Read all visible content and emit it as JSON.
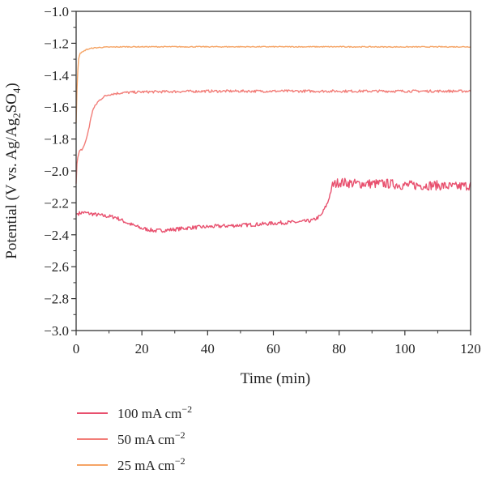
{
  "chart_data": {
    "type": "line",
    "xlabel": "Time (min)",
    "ylabel": {
      "main": "Potential (V vs. Ag/Ag",
      "sub1": "2",
      "mid": "SO",
      "sub2": "4",
      "end": ")"
    },
    "xlim": [
      0,
      120
    ],
    "ylim": [
      -3.0,
      -1.0
    ],
    "x_ticks": [
      "0",
      "20",
      "40",
      "60",
      "80",
      "100",
      "120"
    ],
    "y_ticks": [
      "−1.0",
      "−1.2",
      "−1.4",
      "−1.6",
      "−1.8",
      "−2.0",
      "−2.2",
      "−2.4",
      "−2.6",
      "−2.8",
      "−3.0"
    ],
    "grid": false,
    "legend_position": "bottom-left",
    "series": [
      {
        "name": {
          "text": "100 mA cm",
          "sup": "−2"
        },
        "color": "#e8506e",
        "noise": 0.012,
        "noise_after_x": 78,
        "noise_amp_late": 0.03,
        "points": [
          [
            0,
            -2.27
          ],
          [
            2,
            -2.26
          ],
          [
            5,
            -2.27
          ],
          [
            8,
            -2.28
          ],
          [
            12,
            -2.29
          ],
          [
            16,
            -2.33
          ],
          [
            20,
            -2.36
          ],
          [
            24,
            -2.375
          ],
          [
            28,
            -2.37
          ],
          [
            35,
            -2.355
          ],
          [
            45,
            -2.345
          ],
          [
            55,
            -2.335
          ],
          [
            62,
            -2.325
          ],
          [
            68,
            -2.32
          ],
          [
            72,
            -2.31
          ],
          [
            74.5,
            -2.28
          ],
          [
            76.5,
            -2.2
          ],
          [
            78,
            -2.09
          ],
          [
            80,
            -2.07
          ],
          [
            85,
            -2.08
          ],
          [
            90,
            -2.08
          ],
          [
            95,
            -2.08
          ],
          [
            100,
            -2.09
          ],
          [
            105,
            -2.09
          ],
          [
            110,
            -2.09
          ],
          [
            115,
            -2.1
          ],
          [
            120,
            -2.09
          ]
        ]
      },
      {
        "name": {
          "text": "50 mA cm",
          "sup": "−2"
        },
        "color": "#f27d78",
        "noise": 0.008,
        "points": [
          [
            0,
            -2.08
          ],
          [
            0.3,
            -1.93
          ],
          [
            1,
            -1.88
          ],
          [
            2,
            -1.86
          ],
          [
            3,
            -1.81
          ],
          [
            4,
            -1.72
          ],
          [
            5,
            -1.62
          ],
          [
            6.5,
            -1.57
          ],
          [
            8,
            -1.54
          ],
          [
            10,
            -1.52
          ],
          [
            14,
            -1.51
          ],
          [
            20,
            -1.505
          ],
          [
            40,
            -1.5
          ],
          [
            60,
            -1.5
          ],
          [
            80,
            -1.5
          ],
          [
            100,
            -1.5
          ],
          [
            120,
            -1.5
          ]
        ]
      },
      {
        "name": {
          "text": "25 mA cm",
          "sup": "−2"
        },
        "color": "#f5a465",
        "noise": 0.003,
        "points": [
          [
            0,
            -1.7
          ],
          [
            0.3,
            -1.45
          ],
          [
            0.7,
            -1.3
          ],
          [
            1.2,
            -1.26
          ],
          [
            2,
            -1.255
          ],
          [
            3,
            -1.24
          ],
          [
            5,
            -1.23
          ],
          [
            8,
            -1.225
          ],
          [
            15,
            -1.222
          ],
          [
            40,
            -1.222
          ],
          [
            60,
            -1.222
          ],
          [
            80,
            -1.222
          ],
          [
            100,
            -1.223
          ],
          [
            120,
            -1.222
          ]
        ]
      }
    ]
  }
}
